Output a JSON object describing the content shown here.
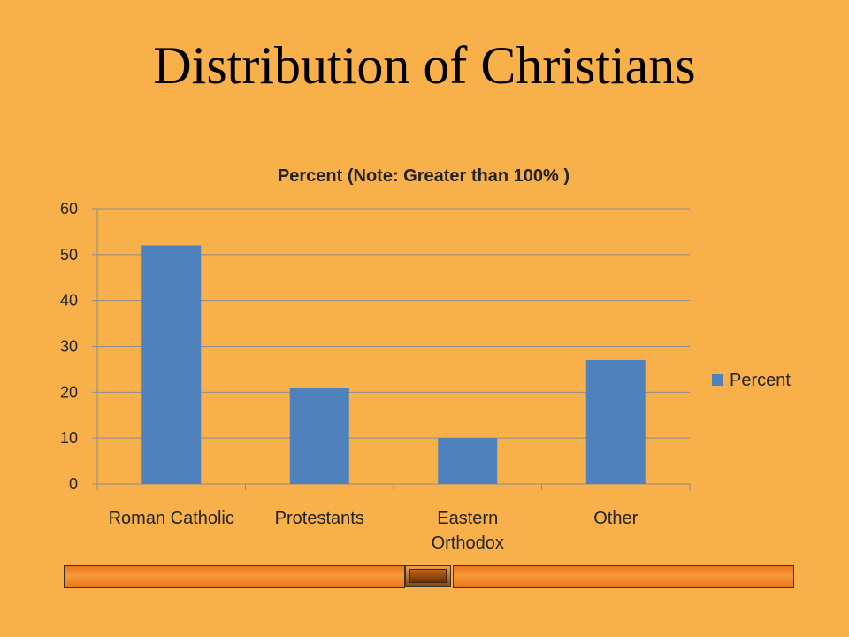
{
  "slide": {
    "title": "Distribution of Christians"
  },
  "colors": {
    "background": "#F8B04A",
    "bar": "#4F81BD",
    "grid": "#8C8C8C"
  },
  "chart_data": {
    "type": "bar",
    "title": "Percent  (Note: Greater than 100% )",
    "categories": [
      "Roman Catholic",
      "Protestants",
      "Eastern Orthodox",
      "Other"
    ],
    "category_lines": [
      [
        "Roman Catholic"
      ],
      [
        "Protestants"
      ],
      [
        "Eastern",
        "Orthodox"
      ],
      [
        "Other"
      ]
    ],
    "series": [
      {
        "name": "Percent",
        "values": [
          52,
          21,
          10,
          27
        ]
      }
    ],
    "ylim": [
      0,
      60
    ],
    "yticks": [
      0,
      10,
      20,
      30,
      40,
      50,
      60
    ],
    "xlabel": "",
    "ylabel": "",
    "grid": true,
    "legend": "right"
  }
}
